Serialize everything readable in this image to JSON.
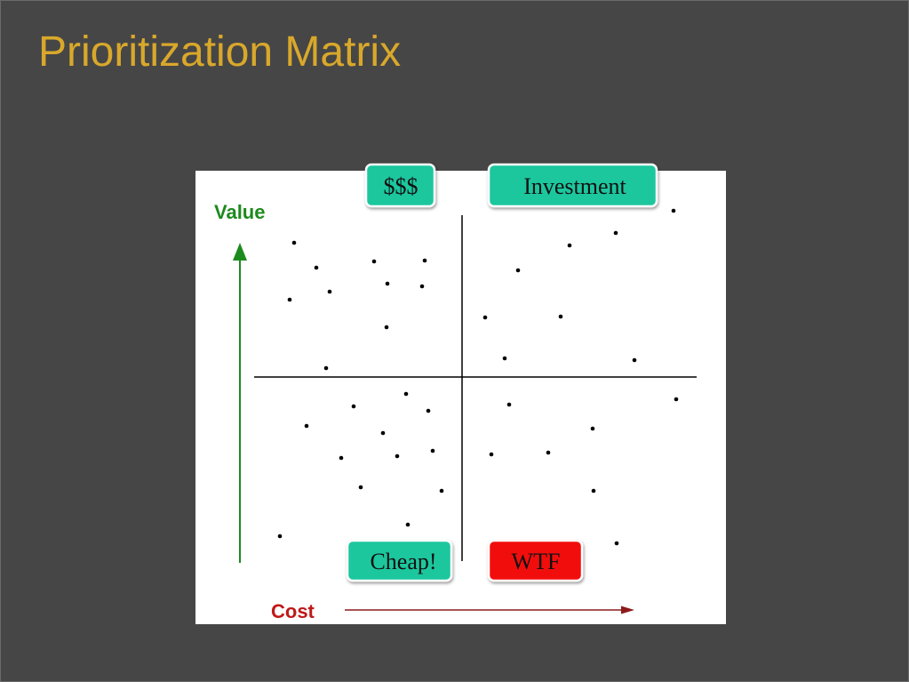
{
  "header": {
    "title": "Prioritization Matrix"
  },
  "axes": {
    "value": "Value",
    "cost": "Cost"
  },
  "quadrants": {
    "top_left": "$$$",
    "top_right": "Investment",
    "bottom_left": "Cheap!",
    "bottom_right": "WTF"
  }
}
